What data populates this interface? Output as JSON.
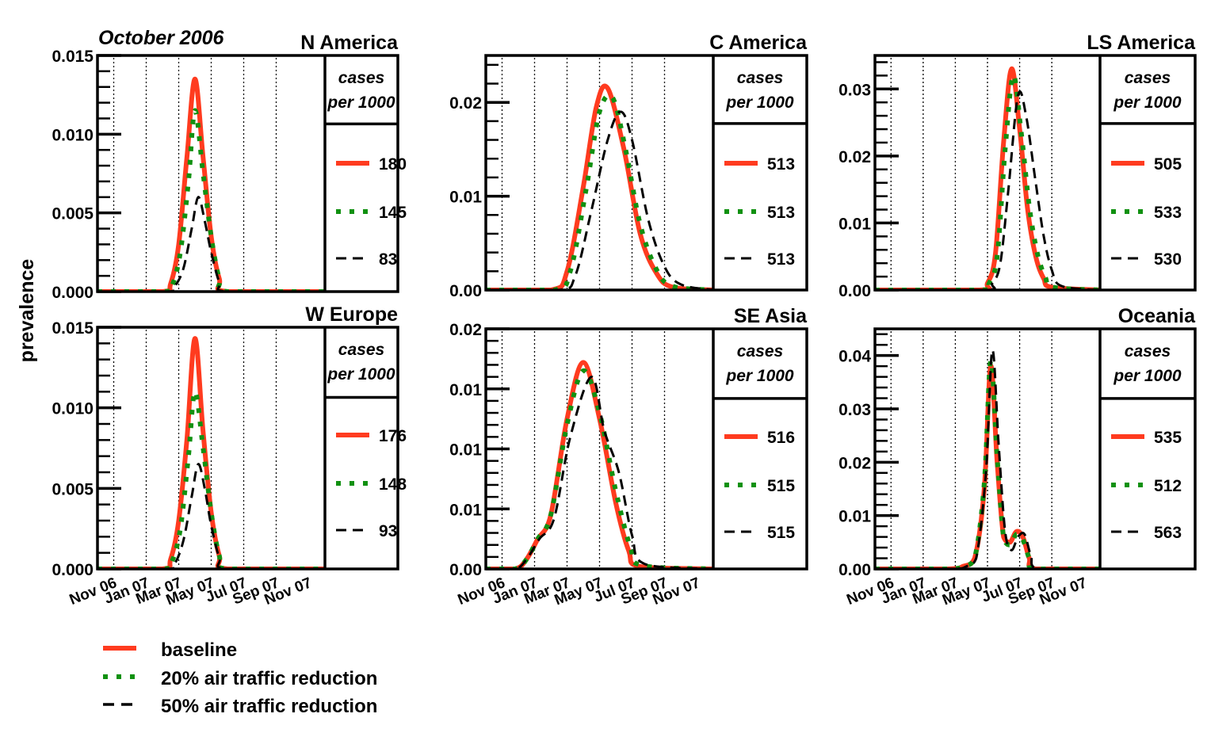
{
  "figure": {
    "date_label": "October 2006",
    "ylabel": "prevalence",
    "legend_header_line1": "cases",
    "legend_header_line2": "per 1000",
    "legend": [
      {
        "label": "baseline",
        "style": "solid",
        "color": "#ff3b1f"
      },
      {
        "label": "20% air traffic reduction",
        "style": "dotted",
        "color": "#119111"
      },
      {
        "label": "50% air traffic reduction",
        "style": "dashed",
        "color": "#000000"
      }
    ]
  },
  "chart_data": [
    {
      "type": "line",
      "title": "N America",
      "x_tick_labels": [
        "Nov 06",
        "Jan 07",
        "Mar 07",
        "May 07",
        "Jul 07",
        "Sep 07",
        "Nov 07"
      ],
      "ylim": [
        0,
        0.015
      ],
      "y_ticks": [
        0,
        0.005,
        0.01,
        0.015
      ],
      "y_tick_labels": [
        "0.000",
        "0.005",
        "0.010",
        "0.015"
      ],
      "x_range_months": [
        -1,
        13
      ],
      "grid_months": [
        0,
        2,
        4,
        6,
        8,
        10
      ],
      "series": [
        {
          "name": "baseline",
          "cases_per_1000": "180",
          "x": [
            -1,
            3.0,
            3.5,
            4.0,
            4.5,
            5.0,
            5.5,
            6.0,
            6.5,
            7.0,
            13
          ],
          "y": [
            0,
            0,
            0.0005,
            0.003,
            0.0085,
            0.0135,
            0.0085,
            0.0035,
            0.0008,
            0,
            0
          ]
        },
        {
          "name": "20% air traffic reduction",
          "cases_per_1000": "145",
          "x": [
            -1,
            3.1,
            3.6,
            4.1,
            4.6,
            5.0,
            5.5,
            6.0,
            6.5,
            7.0,
            13
          ],
          "y": [
            0,
            0,
            0.0004,
            0.0025,
            0.007,
            0.0115,
            0.0075,
            0.0035,
            0.0008,
            0,
            0
          ]
        },
        {
          "name": "50% air traffic reduction",
          "cases_per_1000": "83",
          "x": [
            -1,
            3.3,
            3.8,
            4.3,
            4.8,
            5.2,
            5.6,
            6.0,
            6.5,
            7.0,
            13
          ],
          "y": [
            0,
            0,
            0.0004,
            0.0015,
            0.004,
            0.006,
            0.0045,
            0.0025,
            0.0006,
            0,
            0
          ]
        }
      ]
    },
    {
      "type": "line",
      "title": "C America",
      "x_tick_labels": [
        "Nov 06",
        "Jan 07",
        "Mar 07",
        "May 07",
        "Jul 07",
        "Sep 07",
        "Nov 07"
      ],
      "ylim": [
        0,
        0.025
      ],
      "y_ticks": [
        0,
        0.01,
        0.02
      ],
      "y_tick_labels": [
        "0.00",
        "0.01",
        "0.02"
      ],
      "x_range_months": [
        -1,
        13
      ],
      "grid_months": [
        0,
        2,
        4,
        6,
        8,
        10
      ],
      "series": [
        {
          "name": "baseline",
          "cases_per_1000": "513",
          "x": [
            -1,
            3.0,
            4.0,
            5.0,
            5.8,
            6.5,
            7.5,
            8.5,
            9.5,
            10.5,
            13
          ],
          "y": [
            0,
            0,
            0.002,
            0.011,
            0.0195,
            0.0215,
            0.015,
            0.006,
            0.0018,
            0.0003,
            0
          ]
        },
        {
          "name": "20% air traffic reduction",
          "cases_per_1000": "513",
          "x": [
            -1,
            3.2,
            4.2,
            5.2,
            6.0,
            6.8,
            7.6,
            8.5,
            9.5,
            10.5,
            13
          ],
          "y": [
            0,
            0,
            0.002,
            0.011,
            0.019,
            0.0205,
            0.015,
            0.007,
            0.0022,
            0.0004,
            0
          ]
        },
        {
          "name": "50% air traffic reduction",
          "cases_per_1000": "513",
          "x": [
            -1,
            3.5,
            4.5,
            5.5,
            6.5,
            7.3,
            8.0,
            9.0,
            10.0,
            11.0,
            13
          ],
          "y": [
            0,
            0,
            0.0015,
            0.0085,
            0.016,
            0.019,
            0.016,
            0.0075,
            0.0025,
            0.0006,
            0
          ]
        }
      ]
    },
    {
      "type": "line",
      "title": "LS America",
      "x_tick_labels": [
        "Nov 06",
        "Jan 07",
        "Mar 07",
        "May 07",
        "Jul 07",
        "Sep 07",
        "Nov 07"
      ],
      "ylim": [
        0,
        0.035
      ],
      "y_ticks": [
        0,
        0.01,
        0.02,
        0.03
      ],
      "y_tick_labels": [
        "0.00",
        "0.01",
        "0.02",
        "0.03"
      ],
      "x_range_months": [
        -1,
        13
      ],
      "grid_months": [
        0,
        2,
        4,
        6,
        8,
        10
      ],
      "series": [
        {
          "name": "baseline",
          "cases_per_1000": "505",
          "x": [
            -1,
            5.5,
            6.0,
            6.5,
            7.0,
            7.5,
            8.0,
            8.5,
            9.0,
            9.5,
            10.0,
            13
          ],
          "y": [
            0,
            0,
            0.001,
            0.0055,
            0.022,
            0.033,
            0.024,
            0.012,
            0.005,
            0.0017,
            0.0004,
            0
          ]
        },
        {
          "name": "20% air traffic reduction",
          "cases_per_1000": "533",
          "x": [
            -1,
            5.6,
            6.1,
            6.6,
            7.1,
            7.6,
            8.1,
            8.6,
            9.1,
            9.6,
            10.1,
            13
          ],
          "y": [
            0,
            0,
            0.001,
            0.005,
            0.021,
            0.032,
            0.0235,
            0.0125,
            0.0055,
            0.0019,
            0.0004,
            0
          ]
        },
        {
          "name": "50% air traffic reduction",
          "cases_per_1000": "530",
          "x": [
            -1,
            5.8,
            6.3,
            6.8,
            7.3,
            7.9,
            8.4,
            9.0,
            9.5,
            10.0,
            10.6,
            13
          ],
          "y": [
            0,
            0,
            0.001,
            0.004,
            0.015,
            0.029,
            0.026,
            0.016,
            0.008,
            0.003,
            0.0006,
            0
          ]
        }
      ]
    },
    {
      "type": "line",
      "title": "W Europe",
      "x_tick_labels": [
        "Nov 06",
        "Jan 07",
        "Mar 07",
        "May 07",
        "Jul 07",
        "Sep 07",
        "Nov 07"
      ],
      "ylim": [
        0,
        0.015
      ],
      "y_ticks": [
        0,
        0.005,
        0.01,
        0.015
      ],
      "y_tick_labels": [
        "0.000",
        "0.005",
        "0.010",
        "0.015"
      ],
      "x_range_months": [
        -1,
        13
      ],
      "grid_months": [
        0,
        2,
        4,
        6,
        8,
        10
      ],
      "series": [
        {
          "name": "baseline",
          "cases_per_1000": "176",
          "x": [
            -1,
            3.0,
            3.5,
            4.0,
            4.5,
            5.0,
            5.5,
            6.0,
            6.5,
            7.0,
            13
          ],
          "y": [
            0,
            0,
            0.0006,
            0.003,
            0.008,
            0.0143,
            0.0085,
            0.0035,
            0.0008,
            0,
            0
          ]
        },
        {
          "name": "20% air traffic reduction",
          "cases_per_1000": "148",
          "x": [
            -1,
            3.1,
            3.6,
            4.1,
            4.6,
            5.0,
            5.5,
            6.0,
            6.5,
            7.0,
            13
          ],
          "y": [
            0,
            0,
            0.0005,
            0.0025,
            0.007,
            0.011,
            0.0075,
            0.0035,
            0.0008,
            0,
            0
          ]
        },
        {
          "name": "50% air traffic reduction",
          "cases_per_1000": "93",
          "x": [
            -1,
            3.3,
            3.8,
            4.3,
            4.8,
            5.2,
            5.6,
            6.0,
            6.5,
            7.0,
            13
          ],
          "y": [
            0,
            0,
            0.0004,
            0.0018,
            0.0045,
            0.0065,
            0.005,
            0.0027,
            0.0007,
            0,
            0
          ]
        }
      ]
    },
    {
      "type": "line",
      "title": "SE Asia",
      "x_tick_labels": [
        "Nov 06",
        "Jan 07",
        "Mar 07",
        "May 07",
        "Jul 07",
        "Sep 07",
        "Nov 07"
      ],
      "ylim": [
        0,
        0.02
      ],
      "y_ticks": [
        0,
        0.005,
        0.01,
        0.015,
        0.02
      ],
      "y_tick_labels": [
        "0.00",
        "0.01",
        "0.01",
        "0.01",
        "0.02"
      ],
      "x_range_months": [
        -1,
        13
      ],
      "grid_months": [
        0,
        2,
        4,
        6,
        8,
        10
      ],
      "series": [
        {
          "name": "baseline",
          "cases_per_1000": "516",
          "x": [
            -1,
            0.8,
            1.5,
            2.2,
            3.0,
            4.0,
            5.0,
            6.0,
            7.0,
            7.8,
            8.5,
            13
          ],
          "y": [
            0,
            0,
            0.0008,
            0.0025,
            0.0045,
            0.0125,
            0.0172,
            0.0125,
            0.0055,
            0.0015,
            0.0002,
            0
          ]
        },
        {
          "name": "20% air traffic reduction",
          "cases_per_1000": "515",
          "x": [
            -1,
            0.8,
            1.5,
            2.2,
            3.0,
            4.0,
            5.0,
            6.0,
            7.0,
            7.9,
            8.6,
            13
          ],
          "y": [
            0,
            0,
            0.0008,
            0.0025,
            0.0045,
            0.012,
            0.0165,
            0.013,
            0.0065,
            0.0018,
            0.0003,
            0
          ]
        },
        {
          "name": "50% air traffic reduction",
          "cases_per_1000": "515",
          "x": [
            -1,
            0.8,
            1.5,
            2.3,
            3.2,
            4.2,
            5.5,
            6.3,
            7.2,
            8.0,
            8.8,
            13
          ],
          "y": [
            0,
            0,
            0.0008,
            0.0025,
            0.0042,
            0.011,
            0.016,
            0.0115,
            0.008,
            0.0028,
            0.0004,
            0
          ]
        }
      ]
    },
    {
      "type": "line",
      "title": "Oceania",
      "x_tick_labels": [
        "Nov 06",
        "Jan 07",
        "Mar 07",
        "May 07",
        "Jul 07",
        "Sep 07",
        "Nov 07"
      ],
      "ylim": [
        0,
        0.045
      ],
      "y_ticks": [
        0,
        0.01,
        0.02,
        0.03,
        0.04
      ],
      "y_tick_labels": [
        "0.00",
        "0.01",
        "0.02",
        "0.03",
        "0.04"
      ],
      "x_range_months": [
        -1,
        13
      ],
      "grid_months": [
        0,
        2,
        4,
        6,
        8,
        10
      ],
      "series": [
        {
          "name": "baseline",
          "cases_per_1000": "535",
          "x": [
            -1,
            3.5,
            4.5,
            5.2,
            5.8,
            6.2,
            6.6,
            7.0,
            7.4,
            7.8,
            8.2,
            8.6,
            9.0,
            13
          ],
          "y": [
            0,
            0,
            0.0005,
            0.002,
            0.015,
            0.038,
            0.02,
            0.006,
            0.005,
            0.007,
            0.006,
            0.002,
            0,
            0
          ]
        },
        {
          "name": "20% air traffic reduction",
          "cases_per_1000": "512",
          "x": [
            -1,
            3.5,
            4.5,
            5.2,
            5.8,
            6.2,
            6.6,
            7.0,
            7.4,
            7.8,
            8.2,
            8.6,
            9.0,
            13
          ],
          "y": [
            0,
            0,
            0.0005,
            0.002,
            0.016,
            0.039,
            0.021,
            0.006,
            0.0045,
            0.0065,
            0.0055,
            0.002,
            0,
            0
          ]
        },
        {
          "name": "50% air traffic reduction",
          "cases_per_1000": "563",
          "x": [
            -1,
            3.7,
            4.7,
            5.3,
            5.9,
            6.3,
            6.7,
            7.1,
            7.5,
            7.9,
            8.3,
            8.7,
            9.2,
            13
          ],
          "y": [
            0,
            0,
            0.0005,
            0.002,
            0.018,
            0.041,
            0.023,
            0.007,
            0.0035,
            0.006,
            0.0065,
            0.0025,
            0,
            0
          ]
        }
      ]
    }
  ]
}
